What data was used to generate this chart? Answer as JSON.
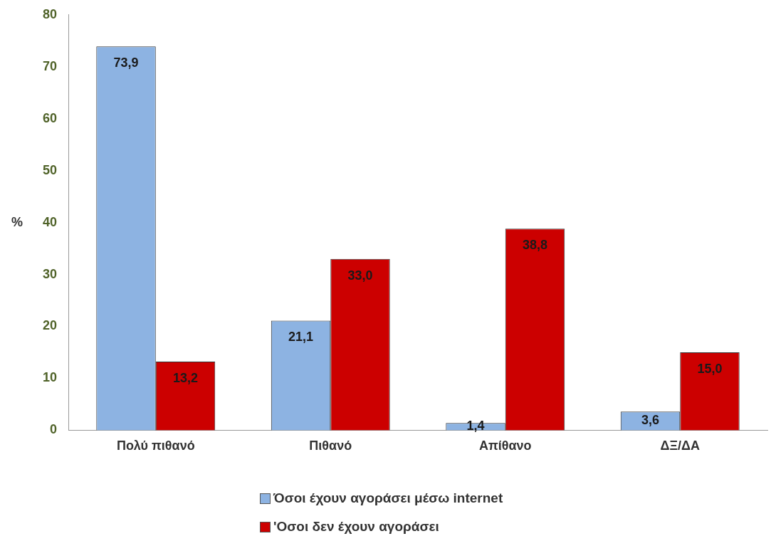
{
  "chart_data": {
    "type": "bar",
    "ylabel": "%",
    "categories": [
      "Πολύ πιθανό",
      "Πιθανό",
      "Απίθανο",
      "ΔΞ/ΔΑ"
    ],
    "series": [
      {
        "name": "Όσοι έχουν αγοράσει μέσω internet",
        "color": "#8db3e2",
        "values": [
          73.9,
          21.1,
          1.4,
          3.6
        ],
        "value_labels": [
          "73,9",
          "21,1",
          "1,4",
          "3,6"
        ]
      },
      {
        "name": "'Οσοι δεν έχουν αγοράσει",
        "color": "#cc0000",
        "values": [
          13.2,
          33.0,
          38.8,
          15.0
        ],
        "value_labels": [
          "13,2",
          "33,0",
          "38,8",
          "15,0"
        ]
      }
    ],
    "ylim": [
      0,
      80
    ],
    "yticks": [
      0,
      10,
      20,
      30,
      40,
      50,
      60,
      70,
      80
    ],
    "grid": false,
    "legend": "bottom"
  }
}
